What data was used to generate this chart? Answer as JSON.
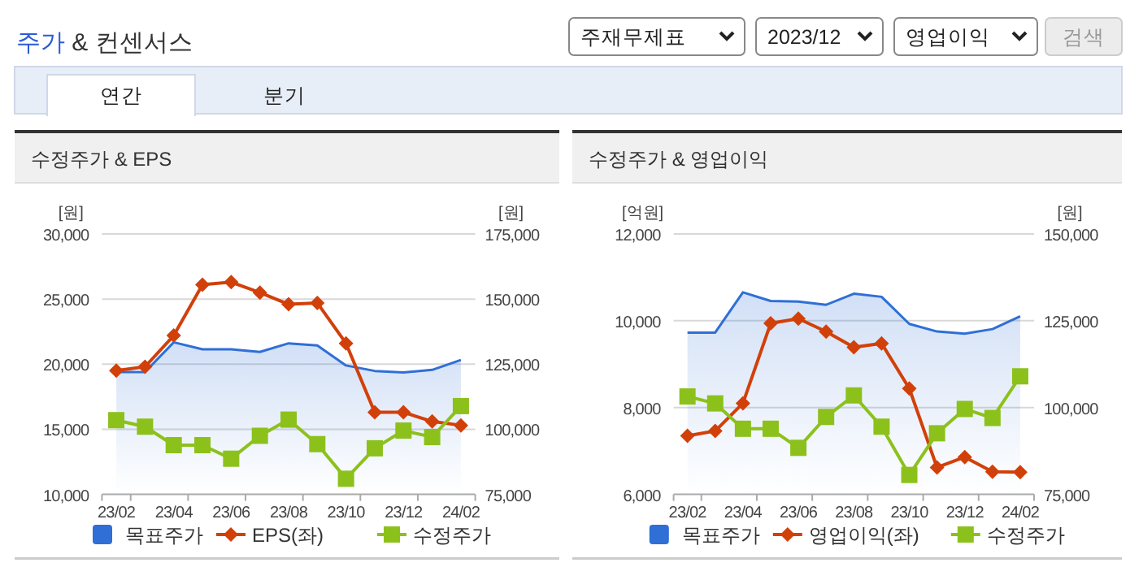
{
  "chart_data": [
    {
      "type": "other",
      "title": "주가 & 컨센서스",
      "annotations": [
        "주재무제표",
        "2023/12",
        "영업이익",
        "검색",
        "연간",
        "분기"
      ]
    },
    {
      "type": "line",
      "title": "수정주가 & EPS",
      "ylabel": "[원]",
      "y2label": "[원]",
      "categories": [
        "23/02",
        null,
        "23/04",
        null,
        "23/06",
        null,
        "23/08",
        null,
        "23/10",
        null,
        "23/12",
        null,
        "24/02"
      ],
      "ylim": [
        10000,
        30000
      ],
      "yticks": [
        {
          "value": 10000,
          "label": "10,000"
        },
        {
          "value": 15000,
          "label": "15,000"
        },
        {
          "value": 20000,
          "label": "20,000"
        },
        {
          "value": 25000,
          "label": "25,000"
        },
        {
          "value": 30000,
          "label": "30,000"
        }
      ],
      "y2lim": [
        75000,
        175000
      ],
      "y2ticks": [
        {
          "value": 75000,
          "label": "75,000"
        },
        {
          "value": 100000,
          "label": "100,000"
        },
        {
          "value": 125000,
          "label": "125,000"
        },
        {
          "value": 150000,
          "label": "150,000"
        },
        {
          "value": 175000,
          "label": "175,000"
        }
      ],
      "grid": "y",
      "legend": "bottom",
      "series": [
        {
          "name": "목표주가",
          "type": "area",
          "axis": "y2",
          "color": "#2f6fd6",
          "values": [
            122000,
            122000,
            133400,
            130700,
            130700,
            129700,
            133000,
            132200,
            124500,
            122400,
            121800,
            122800,
            126600
          ]
        },
        {
          "name": "EPS(좌)",
          "type": "line",
          "marker": "diamond",
          "color": "#d2400a",
          "values": [
            19500,
            19800,
            22200,
            26100,
            26300,
            25500,
            24600,
            24700,
            21600,
            16300,
            16300,
            15600,
            15300
          ]
        },
        {
          "name": "수정주가",
          "type": "line",
          "marker": "square",
          "axis": "y2",
          "color": "#8cc11c",
          "values": [
            103500,
            101000,
            93900,
            93900,
            88700,
            97500,
            103700,
            94300,
            81000,
            92700,
            99500,
            97000,
            108900
          ]
        }
      ]
    },
    {
      "type": "line",
      "title": "수정주가 & 영업이익",
      "ylabel": "[억원]",
      "y2label": "[원]",
      "categories": [
        "23/02",
        null,
        "23/04",
        null,
        "23/06",
        null,
        "23/08",
        null,
        "23/10",
        null,
        "23/12",
        null,
        "24/02"
      ],
      "ylim": [
        6000,
        12000
      ],
      "yticks": [
        {
          "value": 6000,
          "label": "6,000"
        },
        {
          "value": 8000,
          "label": "8,000"
        },
        {
          "value": 10000,
          "label": "10,000"
        },
        {
          "value": 12000,
          "label": "12,000"
        }
      ],
      "y2lim": [
        75000,
        150000
      ],
      "y2ticks": [
        {
          "value": 75000,
          "label": "75,000"
        },
        {
          "value": 100000,
          "label": "100,000"
        },
        {
          "value": 125000,
          "label": "125,000"
        },
        {
          "value": 150000,
          "label": "150,000"
        }
      ],
      "grid": "y",
      "legend": "bottom",
      "series": [
        {
          "name": "목표주가",
          "type": "area",
          "axis": "y2",
          "color": "#2f6fd6",
          "values": [
            121600,
            121600,
            133200,
            130700,
            130500,
            129600,
            132800,
            131900,
            124100,
            121900,
            121300,
            122600,
            126300
          ]
        },
        {
          "name": "영업이익(좌)",
          "type": "line",
          "marker": "diamond",
          "color": "#d2400a",
          "values": [
            7350,
            7460,
            8100,
            9940,
            10050,
            9750,
            9390,
            9480,
            8440,
            6620,
            6860,
            6520,
            6510
          ]
        },
        {
          "name": "수정주가",
          "type": "line",
          "marker": "square",
          "axis": "y2",
          "color": "#8cc11c",
          "values": [
            103200,
            101200,
            93900,
            93900,
            88400,
            97300,
            103500,
            94500,
            80600,
            92600,
            99600,
            97000,
            109000
          ]
        }
      ]
    }
  ]
}
